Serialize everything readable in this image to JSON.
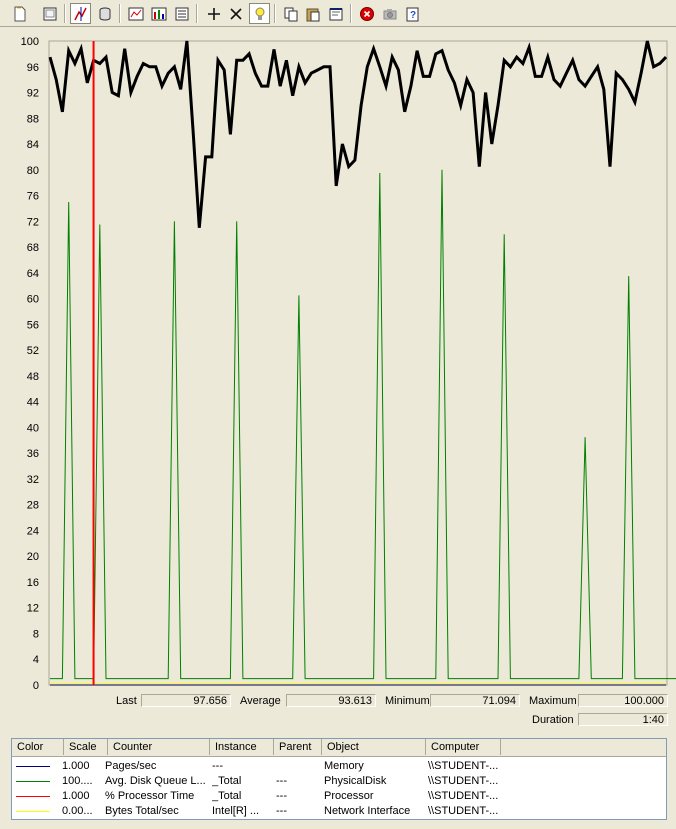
{
  "toolbar": {
    "buttons": [
      {
        "name": "new-counter-set-icon"
      },
      {
        "name": "clear-display-icon"
      },
      {
        "name": "view-current-activity-icon"
      },
      {
        "name": "view-log-data-icon"
      },
      {
        "name": "view-graph-icon"
      },
      {
        "name": "view-histogram-icon"
      },
      {
        "name": "view-report-icon"
      },
      {
        "name": "add-counter-icon"
      },
      {
        "name": "delete-counter-icon"
      },
      {
        "name": "highlight-icon"
      },
      {
        "name": "copy-properties-icon"
      },
      {
        "name": "paste-counter-list-icon"
      },
      {
        "name": "properties-icon"
      },
      {
        "name": "freeze-display-icon"
      },
      {
        "name": "update-data-icon"
      },
      {
        "name": "help-icon"
      }
    ]
  },
  "chart_data": {
    "type": "line",
    "ylim": [
      0,
      100
    ],
    "yticks": [
      "100",
      "96",
      "92",
      "88",
      "84",
      "80",
      "76",
      "72",
      "68",
      "64",
      "60",
      "56",
      "52",
      "48",
      "44",
      "40",
      "36",
      "32",
      "28",
      "24",
      "20",
      "16",
      "12",
      "8",
      "4",
      "0"
    ],
    "timebar_index": 7,
    "series": [
      {
        "color": "#000000",
        "highlighted": true,
        "values": [
          97.5,
          94,
          89,
          98.5,
          96.5,
          98.8,
          93.5,
          97,
          96.5,
          97.5,
          92,
          91.5,
          98.8,
          92,
          94.5,
          96.5,
          96,
          96,
          93,
          95,
          96,
          92.5,
          100,
          86,
          71,
          82,
          82,
          97,
          95.5,
          85.5,
          97,
          97,
          98,
          95,
          93,
          93,
          98.7,
          93,
          97,
          91.5,
          96,
          93.5,
          95,
          95.5,
          96,
          96,
          77.5,
          84,
          80.5,
          81.5,
          90,
          96,
          98.8,
          96,
          93,
          97.5,
          95.5,
          89,
          93,
          98.5,
          94.5,
          94.5,
          98,
          98.5,
          95.5,
          93.5,
          90,
          94,
          92,
          80.5,
          92,
          84,
          90,
          97,
          96,
          97.5,
          96.5,
          99,
          94.5,
          94.5,
          97.5,
          94,
          93,
          95,
          97,
          94,
          93,
          94.5,
          96,
          92.5,
          80.5,
          95,
          94,
          92.5,
          90.5,
          95,
          100,
          96,
          96.5,
          97.5
        ]
      },
      {
        "color": "#008000",
        "highlighted": false,
        "values": [
          1,
          1,
          1,
          75,
          1,
          1,
          1,
          1,
          71.5,
          1,
          1,
          1,
          1,
          1,
          1,
          1,
          1,
          1,
          1,
          1,
          72,
          1,
          1,
          1,
          1,
          1,
          1,
          1,
          1,
          1,
          72,
          1,
          1,
          1,
          1,
          1,
          1,
          1,
          1,
          1,
          60.5,
          1,
          1,
          1,
          1,
          1,
          1,
          1,
          1,
          1,
          1,
          1,
          1,
          79.5,
          1,
          1,
          1,
          1,
          1,
          1,
          1,
          1,
          1,
          80,
          1,
          1,
          1,
          1,
          1,
          1,
          1,
          1,
          1,
          70,
          1,
          1,
          1,
          1,
          1,
          1,
          1,
          1,
          1,
          1,
          1,
          1,
          38.5,
          1,
          1,
          1,
          1,
          1,
          1,
          63.5,
          1,
          1,
          1,
          1,
          1,
          1,
          1,
          1,
          1
        ]
      },
      {
        "color": "#000080",
        "highlighted": false,
        "values": [
          0,
          0,
          0,
          0,
          0,
          0,
          0,
          0,
          0,
          0,
          0,
          0,
          0,
          0,
          0,
          0,
          0,
          0,
          0,
          0,
          0,
          0,
          0,
          0,
          0,
          0,
          0,
          0,
          0,
          0,
          0,
          0,
          0,
          0,
          0,
          0,
          0,
          0,
          0,
          0,
          0,
          0,
          0,
          0,
          0,
          0,
          0,
          0,
          0,
          0,
          0,
          0,
          0,
          0,
          0,
          0,
          0,
          0,
          0,
          0,
          0,
          0,
          0,
          0,
          0,
          0,
          0,
          0,
          0,
          0,
          0,
          0,
          0,
          0,
          0,
          0,
          0,
          0,
          0,
          0,
          0,
          0,
          0,
          0,
          0,
          0,
          0,
          0,
          0,
          0,
          0,
          0,
          0,
          0,
          0,
          0,
          0,
          0,
          0,
          0
        ]
      },
      {
        "color": "#FFFF00",
        "highlighted": false,
        "values": [
          0.2,
          0.2,
          0.2,
          0.2,
          0.2,
          0.2,
          0.2,
          0.2,
          0.2,
          0.2,
          0.2,
          0.2,
          0.2,
          0.2,
          0.2,
          0.2,
          0.2,
          0.2,
          0.2,
          0.2,
          0.2,
          0.2,
          0.2,
          0.2,
          0.2,
          0.2,
          0.2,
          0.2,
          0.2,
          0.2,
          0.2,
          0.2,
          0.2,
          0.2,
          0.2,
          0.2,
          0.2,
          0.2,
          0.2,
          0.2,
          0.2,
          0.2,
          0.2,
          0.2,
          0.2,
          0.2,
          0.2,
          0.2,
          0.2,
          0.2,
          0.2,
          0.2,
          0.2,
          0.2,
          0.2,
          0.2,
          0.2,
          0.2,
          0.2,
          0.2,
          0.2,
          0.2,
          0.2,
          0.2,
          0.2,
          0.2,
          0.2,
          0.2,
          0.2,
          0.2,
          0.2,
          0.2,
          0.2,
          0.2,
          0.2,
          0.2,
          0.2,
          0.2,
          0.2,
          0.2,
          0.2,
          0.2,
          0.2,
          0.2,
          0.2,
          0.2,
          0.2,
          0.2,
          0.2,
          0.2,
          0.2,
          0.2,
          0.2,
          0.2,
          0.2,
          0.2,
          0.2,
          0.2,
          0.2,
          0.2
        ]
      }
    ]
  },
  "stats": {
    "last_label": "Last",
    "last_value": "97.656",
    "average_label": "Average",
    "average_value": "93.613",
    "minimum_label": "Minimum",
    "minimum_value": "71.094",
    "maximum_label": "Maximum",
    "maximum_value": "100.000",
    "duration_label": "Duration",
    "duration_value": "1:40"
  },
  "legend": {
    "headers": [
      "Color",
      "Scale",
      "Counter",
      "Instance",
      "Parent",
      "Object",
      "Computer"
    ],
    "rows": [
      {
        "color": "#000080",
        "scale": "1.000",
        "counter": "Pages/sec",
        "instance": "---",
        "parent": "",
        "object": "Memory",
        "computer": "\\\\STUDENT-..."
      },
      {
        "color": "#008000",
        "scale": "100....",
        "counter": "Avg. Disk Queue L...",
        "instance": "_Total",
        "parent": "---",
        "object": "PhysicalDisk",
        "computer": "\\\\STUDENT-..."
      },
      {
        "color": "#FF0000",
        "scale": "1.000",
        "counter": "% Processor Time",
        "instance": "_Total",
        "parent": "---",
        "object": "Processor",
        "computer": "\\\\STUDENT-..."
      },
      {
        "color": "#FFFF00",
        "scale": "0.00...",
        "counter": "Bytes Total/sec",
        "instance": "Intel[R] ...",
        "parent": "---",
        "object": "Network Interface",
        "computer": "\\\\STUDENT-..."
      }
    ]
  }
}
